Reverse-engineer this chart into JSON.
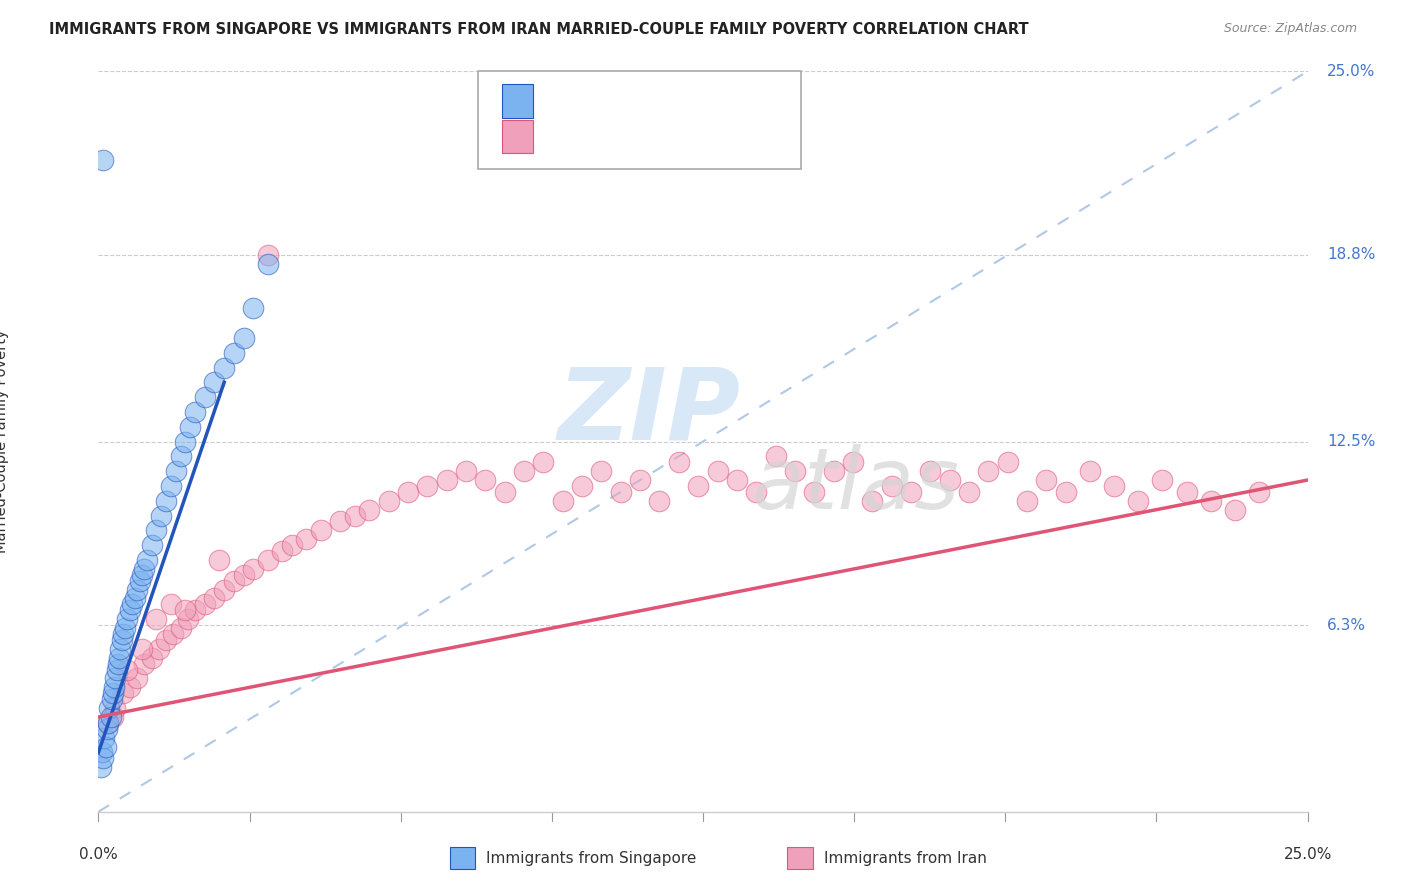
{
  "title": "IMMIGRANTS FROM SINGAPORE VS IMMIGRANTS FROM IRAN MARRIED-COUPLE FAMILY POVERTY CORRELATION CHART",
  "source": "Source: ZipAtlas.com",
  "ylabel_ticks": [
    0.0,
    6.3,
    12.5,
    18.8,
    25.0
  ],
  "ylabel_tick_labels": [
    "",
    "6.3%",
    "12.5%",
    "18.8%",
    "25.0%"
  ],
  "xlim": [
    0.0,
    25.0
  ],
  "ylim": [
    0.0,
    25.0
  ],
  "singapore_color": "#7bb3f0",
  "iran_color": "#f0a0bb",
  "singapore_trend_color": "#2255bb",
  "iran_trend_color": "#e05575",
  "diagonal_color": "#b0c8e8",
  "sg_x": [
    0.05,
    0.08,
    0.1,
    0.12,
    0.15,
    0.18,
    0.2,
    0.22,
    0.25,
    0.28,
    0.3,
    0.32,
    0.35,
    0.38,
    0.4,
    0.42,
    0.45,
    0.48,
    0.5,
    0.55,
    0.6,
    0.65,
    0.7,
    0.75,
    0.8,
    0.85,
    0.9,
    0.95,
    1.0,
    1.1,
    1.2,
    1.3,
    1.4,
    1.5,
    1.6,
    1.7,
    1.8,
    1.9,
    2.0,
    2.2,
    2.4,
    2.6,
    2.8,
    3.0,
    3.2,
    3.5,
    0.1
  ],
  "sg_y": [
    1.5,
    2.0,
    1.8,
    2.5,
    2.2,
    2.8,
    3.0,
    3.5,
    3.2,
    3.8,
    4.0,
    4.2,
    4.5,
    4.8,
    5.0,
    5.2,
    5.5,
    5.8,
    6.0,
    6.2,
    6.5,
    6.8,
    7.0,
    7.2,
    7.5,
    7.8,
    8.0,
    8.2,
    8.5,
    9.0,
    9.5,
    10.0,
    10.5,
    11.0,
    11.5,
    12.0,
    12.5,
    13.0,
    13.5,
    14.0,
    14.5,
    15.0,
    15.5,
    16.0,
    17.0,
    18.5,
    22.0
  ],
  "iran_x": [
    0.2,
    0.35,
    0.5,
    0.65,
    0.8,
    0.95,
    1.1,
    1.25,
    1.4,
    1.55,
    1.7,
    1.85,
    2.0,
    2.2,
    2.4,
    2.6,
    2.8,
    3.0,
    3.2,
    3.5,
    3.8,
    4.0,
    4.3,
    4.6,
    5.0,
    5.3,
    5.6,
    6.0,
    6.4,
    6.8,
    7.2,
    7.6,
    8.0,
    8.4,
    8.8,
    9.2,
    9.6,
    10.0,
    10.4,
    10.8,
    11.2,
    11.6,
    12.0,
    12.4,
    12.8,
    13.2,
    13.6,
    14.0,
    14.4,
    14.8,
    15.2,
    15.6,
    16.0,
    16.4,
    16.8,
    17.2,
    17.6,
    18.0,
    18.4,
    18.8,
    19.2,
    19.6,
    20.0,
    20.5,
    21.0,
    21.5,
    22.0,
    22.5,
    23.0,
    23.5,
    24.0,
    0.3,
    0.6,
    0.9,
    1.2,
    1.5,
    1.8,
    2.5,
    3.5
  ],
  "iran_y": [
    3.0,
    3.5,
    4.0,
    4.2,
    4.5,
    5.0,
    5.2,
    5.5,
    5.8,
    6.0,
    6.2,
    6.5,
    6.8,
    7.0,
    7.2,
    7.5,
    7.8,
    8.0,
    8.2,
    8.5,
    8.8,
    9.0,
    9.2,
    9.5,
    9.8,
    10.0,
    10.2,
    10.5,
    10.8,
    11.0,
    11.2,
    11.5,
    11.2,
    10.8,
    11.5,
    11.8,
    10.5,
    11.0,
    11.5,
    10.8,
    11.2,
    10.5,
    11.8,
    11.0,
    11.5,
    11.2,
    10.8,
    12.0,
    11.5,
    10.8,
    11.5,
    11.8,
    10.5,
    11.0,
    10.8,
    11.5,
    11.2,
    10.8,
    11.5,
    11.8,
    10.5,
    11.2,
    10.8,
    11.5,
    11.0,
    10.5,
    11.2,
    10.8,
    10.5,
    10.2,
    10.8,
    3.2,
    4.8,
    5.5,
    6.5,
    7.0,
    6.8,
    8.5,
    18.8
  ],
  "sg_trend_x": [
    0.0,
    2.6
  ],
  "sg_trend_y": [
    2.0,
    14.5
  ],
  "iran_trend_x": [
    0.0,
    25.0
  ],
  "iran_trend_y": [
    3.2,
    11.2
  ]
}
